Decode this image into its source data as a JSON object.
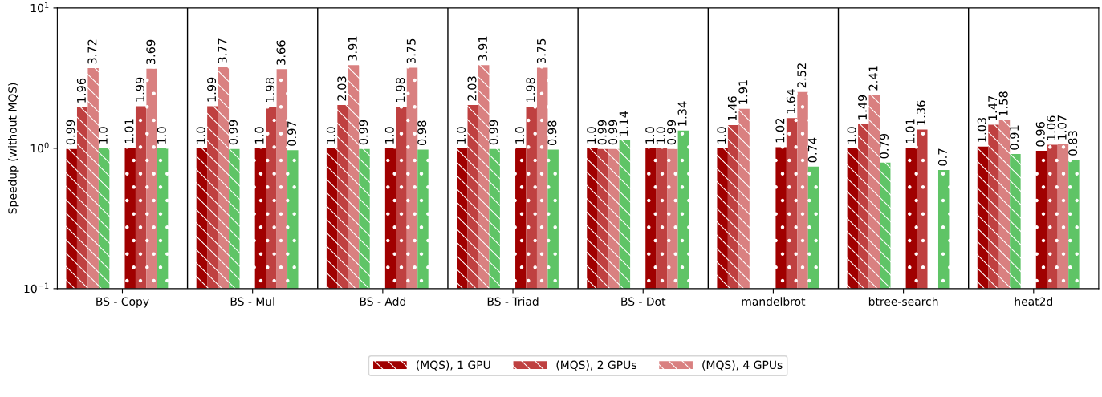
{
  "chart_data": {
    "type": "bar",
    "ylabel": "Speedup (without MQS)",
    "categories": [
      "BS - Copy",
      "BS - Mul",
      "BS - Add",
      "BS - Triad",
      "BS - Dot",
      "mandelbrot",
      "btree-search",
      "heat2d"
    ],
    "log": "y",
    "ylim": [
      0.1,
      10
    ],
    "yticks": [
      {
        "value": 0.1,
        "label": "10$^{−1}$"
      },
      {
        "value": 1,
        "label": "10$^{0}$"
      },
      {
        "value": 10,
        "label": "10$^{1}$"
      }
    ],
    "legend": "bottom",
    "grid": "x",
    "series": [
      {
        "name": "(MQS), 1 GPU",
        "color": "#a00000",
        "values": [
          0.99,
          1.0,
          1.0,
          1.0,
          1.0,
          1.0,
          1.0,
          1.03
        ],
        "value_labels": [
          "0.99",
          "1.0",
          "1.0",
          "1.0",
          "1.0",
          "1.0",
          "1.0",
          "1.03"
        ]
      },
      {
        "name": "(MQS), 2 GPUs",
        "color": "#bf4040",
        "values": [
          1.96,
          1.99,
          2.03,
          2.03,
          0.99,
          1.46,
          1.49,
          1.47
        ],
        "value_labels": [
          "1.96",
          "1.99",
          "2.03",
          "2.03",
          "0.99",
          "1.46",
          "1.49",
          "1.47"
        ]
      },
      {
        "name": "(MQS), 4 GPUs",
        "color": "#d98080",
        "values": [
          3.72,
          3.77,
          3.91,
          3.91,
          0.99,
          1.91,
          2.41,
          1.58
        ],
        "value_labels": [
          "3.72",
          "3.77",
          "3.91",
          "3.91",
          "0.99",
          "1.91",
          "2.41",
          "1.58"
        ]
      },
      {
        "color": "#5fc466",
        "values": [
          1.0,
          0.99,
          0.99,
          0.99,
          1.14,
          null,
          0.79,
          0.91
        ],
        "value_labels": [
          "1.0",
          "0.99",
          "0.99",
          "0.99",
          "1.14",
          null,
          "0.79",
          "0.91"
        ]
      },
      {
        "color": "#a00000",
        "values": [
          1.01,
          1.0,
          1.0,
          1.0,
          1.0,
          1.02,
          1.01,
          0.96
        ],
        "value_labels": [
          "1.01",
          "1.0",
          "1.0",
          "1.0",
          "1.0",
          "1.02",
          "1.01",
          "0.96"
        ]
      },
      {
        "color": "#bf4040",
        "values": [
          1.99,
          1.98,
          1.98,
          1.98,
          1.0,
          1.64,
          1.36,
          1.06
        ],
        "value_labels": [
          "1.99",
          "1.98",
          "1.98",
          "1.98",
          "1.0",
          "1.64",
          "1.36",
          "1.06"
        ]
      },
      {
        "color": "#d98080",
        "values": [
          3.69,
          3.66,
          3.75,
          3.75,
          0.99,
          2.52,
          null,
          1.07
        ],
        "value_labels": [
          "3.69",
          "3.66",
          "3.75",
          "3.75",
          "0.99",
          "2.52",
          null,
          "1.07"
        ]
      },
      {
        "color": "#5fc466",
        "values": [
          1.0,
          0.97,
          0.98,
          0.98,
          1.34,
          0.74,
          0.7,
          0.83
        ],
        "value_labels": [
          "1.0",
          "0.97",
          "0.98",
          "0.98",
          "1.34",
          "0.74",
          "0.7",
          "0.83"
        ]
      }
    ]
  }
}
